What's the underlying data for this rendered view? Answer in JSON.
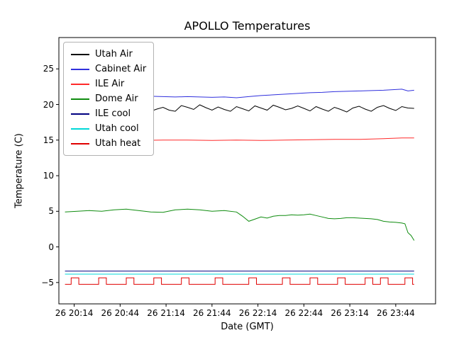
{
  "chart_data": {
    "type": "line",
    "title": "APOLLO Temperatures",
    "xlabel": "Date (GMT)",
    "ylabel": "Temperature (C)",
    "grid": false,
    "legend_position": "upper left",
    "x_unit": "minutes after 26 20:00 GMT",
    "xlim": [
      4,
      250
    ],
    "ylim": [
      -8,
      29.4
    ],
    "xticks": [
      {
        "value": 14,
        "label": "26 20:14"
      },
      {
        "value": 44,
        "label": "26 20:44"
      },
      {
        "value": 74,
        "label": "26 21:14"
      },
      {
        "value": 104,
        "label": "26 21:44"
      },
      {
        "value": 134,
        "label": "26 22:14"
      },
      {
        "value": 164,
        "label": "26 22:44"
      },
      {
        "value": 194,
        "label": "26 23:14"
      },
      {
        "value": 224,
        "label": "26 23:44"
      }
    ],
    "yticks": [
      {
        "value": -5,
        "label": "−5"
      },
      {
        "value": 0,
        "label": "0"
      },
      {
        "value": 5,
        "label": "5"
      },
      {
        "value": 10,
        "label": "10"
      },
      {
        "value": 15,
        "label": "15"
      },
      {
        "value": 20,
        "label": "20"
      },
      {
        "value": 25,
        "label": "25"
      }
    ],
    "series": [
      {
        "name": "Utah Air",
        "color": "#000000",
        "points": [
          [
            8,
            20.6
          ],
          [
            12,
            20.45
          ],
          [
            16,
            20.1
          ],
          [
            20,
            19.9
          ],
          [
            24,
            20.05
          ],
          [
            28,
            19.7
          ],
          [
            32,
            19.5
          ],
          [
            36,
            19.85
          ],
          [
            40,
            19.45
          ],
          [
            44,
            19.3
          ],
          [
            48,
            19.65
          ],
          [
            52,
            19.25
          ],
          [
            56,
            19.1
          ],
          [
            60,
            19.55
          ],
          [
            64,
            19.05
          ],
          [
            68,
            19.35
          ],
          [
            72,
            19.6
          ],
          [
            76,
            19.2
          ],
          [
            80,
            19.05
          ],
          [
            84,
            19.85
          ],
          [
            88,
            19.6
          ],
          [
            92,
            19.3
          ],
          [
            96,
            19.95
          ],
          [
            100,
            19.55
          ],
          [
            104,
            19.2
          ],
          [
            108,
            19.65
          ],
          [
            112,
            19.3
          ],
          [
            116,
            19.05
          ],
          [
            120,
            19.7
          ],
          [
            124,
            19.4
          ],
          [
            128,
            19.1
          ],
          [
            132,
            19.8
          ],
          [
            136,
            19.5
          ],
          [
            140,
            19.2
          ],
          [
            144,
            19.9
          ],
          [
            148,
            19.6
          ],
          [
            152,
            19.25
          ],
          [
            156,
            19.45
          ],
          [
            160,
            19.8
          ],
          [
            164,
            19.45
          ],
          [
            168,
            19.1
          ],
          [
            172,
            19.7
          ],
          [
            176,
            19.35
          ],
          [
            180,
            19.05
          ],
          [
            184,
            19.6
          ],
          [
            188,
            19.3
          ],
          [
            192,
            18.95
          ],
          [
            196,
            19.5
          ],
          [
            200,
            19.75
          ],
          [
            204,
            19.35
          ],
          [
            208,
            19.05
          ],
          [
            212,
            19.6
          ],
          [
            216,
            19.85
          ],
          [
            220,
            19.45
          ],
          [
            224,
            19.15
          ],
          [
            228,
            19.7
          ],
          [
            232,
            19.5
          ],
          [
            236,
            19.45
          ]
        ]
      },
      {
        "name": "Cabinet Air",
        "color": "#3030dd",
        "points": [
          [
            8,
            21.35
          ],
          [
            16,
            21.2
          ],
          [
            24,
            21.1
          ],
          [
            32,
            21.05
          ],
          [
            40,
            21.1
          ],
          [
            48,
            21.05
          ],
          [
            56,
            21.1
          ],
          [
            64,
            21.15
          ],
          [
            72,
            21.1
          ],
          [
            80,
            21.05
          ],
          [
            88,
            21.1
          ],
          [
            96,
            21.05
          ],
          [
            104,
            21.0
          ],
          [
            112,
            21.05
          ],
          [
            120,
            20.95
          ],
          [
            128,
            21.1
          ],
          [
            136,
            21.25
          ],
          [
            144,
            21.35
          ],
          [
            152,
            21.45
          ],
          [
            160,
            21.55
          ],
          [
            168,
            21.65
          ],
          [
            176,
            21.7
          ],
          [
            184,
            21.8
          ],
          [
            192,
            21.85
          ],
          [
            200,
            21.9
          ],
          [
            208,
            21.95
          ],
          [
            216,
            22.0
          ],
          [
            224,
            22.1
          ],
          [
            228,
            22.15
          ],
          [
            232,
            21.9
          ],
          [
            236,
            22.0
          ]
        ]
      },
      {
        "name": "ILE Air",
        "color": "#ff2a2a",
        "points": [
          [
            8,
            15.1
          ],
          [
            24,
            15.0
          ],
          [
            40,
            15.0
          ],
          [
            56,
            14.95
          ],
          [
            72,
            15.0
          ],
          [
            88,
            15.0
          ],
          [
            104,
            14.95
          ],
          [
            120,
            15.0
          ],
          [
            136,
            14.95
          ],
          [
            152,
            15.0
          ],
          [
            168,
            15.05
          ],
          [
            184,
            15.1
          ],
          [
            200,
            15.1
          ],
          [
            216,
            15.2
          ],
          [
            228,
            15.3
          ],
          [
            236,
            15.3
          ]
        ]
      },
      {
        "name": "Dome Air",
        "color": "#0f8c0f",
        "points": [
          [
            8,
            4.9
          ],
          [
            16,
            5.0
          ],
          [
            24,
            5.1
          ],
          [
            32,
            5.0
          ],
          [
            40,
            5.2
          ],
          [
            48,
            5.3
          ],
          [
            56,
            5.1
          ],
          [
            64,
            4.9
          ],
          [
            72,
            4.85
          ],
          [
            80,
            5.2
          ],
          [
            88,
            5.3
          ],
          [
            96,
            5.2
          ],
          [
            104,
            5.0
          ],
          [
            112,
            5.1
          ],
          [
            120,
            4.9
          ],
          [
            124,
            4.3
          ],
          [
            128,
            3.6
          ],
          [
            132,
            3.9
          ],
          [
            136,
            4.2
          ],
          [
            140,
            4.05
          ],
          [
            144,
            4.3
          ],
          [
            148,
            4.4
          ],
          [
            152,
            4.4
          ],
          [
            156,
            4.5
          ],
          [
            160,
            4.45
          ],
          [
            164,
            4.5
          ],
          [
            168,
            4.6
          ],
          [
            172,
            4.4
          ],
          [
            176,
            4.2
          ],
          [
            180,
            4.0
          ],
          [
            184,
            3.95
          ],
          [
            188,
            4.0
          ],
          [
            192,
            4.1
          ],
          [
            196,
            4.1
          ],
          [
            200,
            4.05
          ],
          [
            204,
            4.0
          ],
          [
            208,
            3.95
          ],
          [
            212,
            3.85
          ],
          [
            216,
            3.6
          ],
          [
            220,
            3.5
          ],
          [
            224,
            3.45
          ],
          [
            228,
            3.35
          ],
          [
            230,
            3.25
          ],
          [
            232,
            2.0
          ],
          [
            234,
            1.6
          ],
          [
            236,
            0.9
          ]
        ]
      },
      {
        "name": "ILE cool",
        "color": "#000080",
        "points": [
          [
            8,
            -3.4
          ],
          [
            236,
            -3.4
          ]
        ]
      },
      {
        "name": "Utah cool",
        "color": "#00d8d8",
        "points": [
          [
            8,
            -3.82
          ],
          [
            236,
            -3.82
          ]
        ]
      },
      {
        "name": "Utah heat",
        "color": "#e00000",
        "points": [
          [
            8,
            -5.25
          ],
          [
            12,
            -5.25
          ],
          [
            12,
            -4.35
          ],
          [
            17,
            -4.35
          ],
          [
            17,
            -5.25
          ],
          [
            30,
            -5.25
          ],
          [
            30,
            -4.35
          ],
          [
            35,
            -4.35
          ],
          [
            35,
            -5.25
          ],
          [
            48,
            -5.25
          ],
          [
            48,
            -4.35
          ],
          [
            53,
            -4.35
          ],
          [
            53,
            -5.25
          ],
          [
            66,
            -5.25
          ],
          [
            66,
            -4.35
          ],
          [
            71,
            -4.35
          ],
          [
            71,
            -5.25
          ],
          [
            84,
            -5.25
          ],
          [
            84,
            -4.35
          ],
          [
            89,
            -4.35
          ],
          [
            89,
            -5.25
          ],
          [
            106,
            -5.25
          ],
          [
            106,
            -4.35
          ],
          [
            111,
            -4.35
          ],
          [
            111,
            -5.25
          ],
          [
            128,
            -5.25
          ],
          [
            128,
            -4.35
          ],
          [
            133,
            -4.35
          ],
          [
            133,
            -5.25
          ],
          [
            150,
            -5.25
          ],
          [
            150,
            -4.35
          ],
          [
            155,
            -4.35
          ],
          [
            155,
            -5.25
          ],
          [
            168,
            -5.25
          ],
          [
            168,
            -4.35
          ],
          [
            173,
            -4.35
          ],
          [
            173,
            -5.25
          ],
          [
            186,
            -5.25
          ],
          [
            186,
            -4.35
          ],
          [
            191,
            -4.35
          ],
          [
            191,
            -5.25
          ],
          [
            204,
            -5.25
          ],
          [
            204,
            -4.35
          ],
          [
            209,
            -4.35
          ],
          [
            209,
            -5.25
          ],
          [
            214,
            -5.25
          ],
          [
            214,
            -4.35
          ],
          [
            219,
            -4.35
          ],
          [
            219,
            -5.25
          ],
          [
            230,
            -5.25
          ],
          [
            230,
            -4.35
          ],
          [
            235,
            -4.35
          ],
          [
            235,
            -5.25
          ],
          [
            236,
            -5.25
          ]
        ]
      }
    ]
  }
}
